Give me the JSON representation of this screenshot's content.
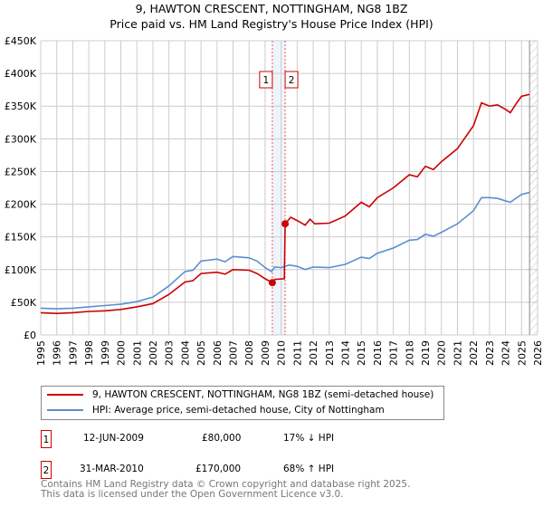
{
  "chart_data": {
    "type": "line",
    "title": "9, HAWTON CRESCENT, NOTTINGHAM, NG8 1BZ",
    "subtitle": "Price paid vs. HM Land Registry's House Price Index (HPI)",
    "xlim": [
      1995,
      2026
    ],
    "ylim": [
      0,
      450000
    ],
    "x_ticks": [
      "1995",
      "1996",
      "1997",
      "1998",
      "1999",
      "2000",
      "2001",
      "2002",
      "2003",
      "2004",
      "2005",
      "2006",
      "2007",
      "2008",
      "2009",
      "2010",
      "2011",
      "2012",
      "2013",
      "2014",
      "2015",
      "2016",
      "2017",
      "2018",
      "2019",
      "2020",
      "2021",
      "2022",
      "2023",
      "2024",
      "2025",
      "2026"
    ],
    "y_ticks": [
      "£0",
      "£50K",
      "£100K",
      "£150K",
      "£200K",
      "£250K",
      "£300K",
      "£350K",
      "£400K",
      "£450K"
    ],
    "grid": true,
    "series": [
      {
        "name": "9, HAWTON CRESCENT, NOTTINGHAM, NG8 1BZ (semi-detached house)",
        "color": "#cc0000",
        "x": [
          1995,
          1996,
          1997,
          1998,
          1999,
          2000,
          2001,
          2002,
          2003,
          2004,
          2004.5,
          2005,
          2006,
          2006.5,
          2007,
          2008,
          2008.5,
          2009,
          2009.45,
          2009.6,
          2010.2,
          2010.25,
          2010.6,
          2011,
          2011.5,
          2011.8,
          2012.1,
          2013,
          2014,
          2015,
          2015.5,
          2016,
          2017,
          2018,
          2018.5,
          2019,
          2019.5,
          2020,
          2021,
          2022,
          2022.5,
          2023,
          2023.5,
          2024,
          2024.3,
          2024.7,
          2025,
          2025.5
        ],
        "y": [
          34000,
          33000,
          34000,
          36000,
          37000,
          39000,
          43000,
          48000,
          62000,
          81000,
          83000,
          94000,
          96000,
          93000,
          100000,
          99000,
          94000,
          86000,
          80000,
          85000,
          86000,
          170000,
          180000,
          175000,
          168000,
          177000,
          170000,
          171000,
          182000,
          203000,
          196000,
          210000,
          225000,
          245000,
          242000,
          258000,
          253000,
          265000,
          285000,
          320000,
          355000,
          350000,
          352000,
          345000,
          340000,
          355000,
          365000,
          368000
        ]
      },
      {
        "name": "HPI: Average price, semi-detached house, City of Nottingham",
        "color": "#5b8fd0",
        "x": [
          1995,
          1996,
          1997,
          1998,
          1999,
          2000,
          2001,
          2002,
          2003,
          2004,
          2004.5,
          2005,
          2006,
          2006.5,
          2007,
          2008,
          2008.5,
          2009,
          2009.4,
          2009.6,
          2010,
          2010.5,
          2011,
          2011.5,
          2012,
          2013,
          2014,
          2015,
          2015.5,
          2016,
          2017,
          2018,
          2018.5,
          2019,
          2019.5,
          2020,
          2021,
          2022,
          2022.5,
          2023,
          2023.5,
          2024,
          2024.3,
          2025,
          2025.5
        ],
        "y": [
          41000,
          40000,
          41000,
          43000,
          45000,
          47000,
          51000,
          58000,
          75000,
          97000,
          99000,
          113000,
          116000,
          112000,
          120000,
          118000,
          113000,
          103000,
          97000,
          104000,
          103000,
          107000,
          105000,
          100000,
          104000,
          103000,
          108000,
          119000,
          117000,
          125000,
          133000,
          145000,
          146000,
          154000,
          151000,
          157000,
          170000,
          190000,
          210000,
          210000,
          209000,
          205000,
          203000,
          215000,
          218000
        ]
      }
    ],
    "sales": [
      {
        "label": "1",
        "x": 2009.45,
        "y": 80000
      },
      {
        "label": "2",
        "x": 2010.25,
        "y": 170000
      }
    ],
    "forecast_from": 2025.5
  },
  "legend": [
    {
      "label": "9, HAWTON CRESCENT, NOTTINGHAM, NG8 1BZ (semi-detached house)",
      "color": "#cc0000"
    },
    {
      "label": "HPI: Average price, semi-detached house, City of Nottingham",
      "color": "#5b8fd0"
    }
  ],
  "transactions": [
    {
      "num": "1",
      "date": "12-JUN-2009",
      "price": "£80,000",
      "hpi": "17% ↓ HPI"
    },
    {
      "num": "2",
      "date": "31-MAR-2010",
      "price": "£170,000",
      "hpi": "68% ↑ HPI"
    }
  ],
  "footer": [
    "Contains HM Land Registry data © Crown copyright and database right 2025.",
    "This data is licensed under the Open Government Licence v3.0."
  ]
}
